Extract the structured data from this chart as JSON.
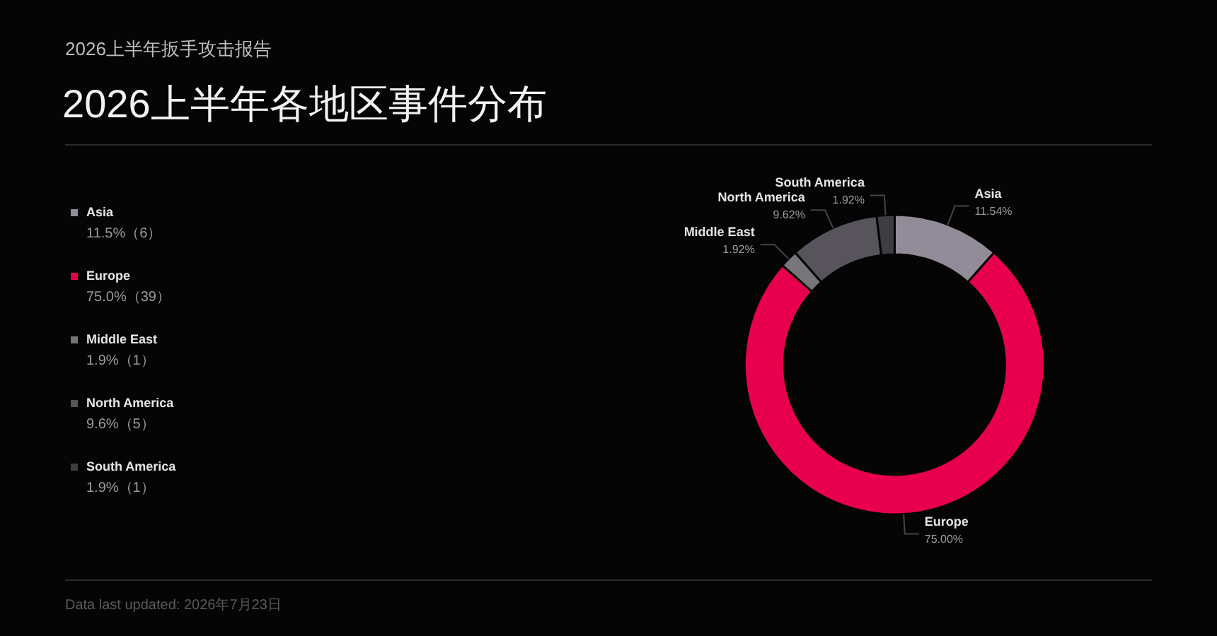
{
  "chart_data": {
    "type": "donut",
    "subtitle": "2026上半年扳手攻击报告",
    "title": "2026上半年各地区事件分布",
    "categories": [
      "Asia",
      "Europe",
      "Middle East",
      "North America",
      "South America"
    ],
    "values": [
      11.54,
      75.0,
      1.92,
      9.62,
      1.92
    ],
    "value_labels": [
      "11.54%",
      "75.00%",
      "1.92%",
      "9.62%",
      "1.92%"
    ],
    "colors": [
      "#918c97",
      "#e8004f",
      "#78747c",
      "#57545b",
      "#3f3d42"
    ],
    "legend": "left",
    "annotations": [
      "11.5%（6）",
      "75.0%（39）",
      "1.9%（1）",
      "9.6%（5）",
      "1.9%（1）",
      "Data last updated: 2026年7月23日"
    ]
  }
}
